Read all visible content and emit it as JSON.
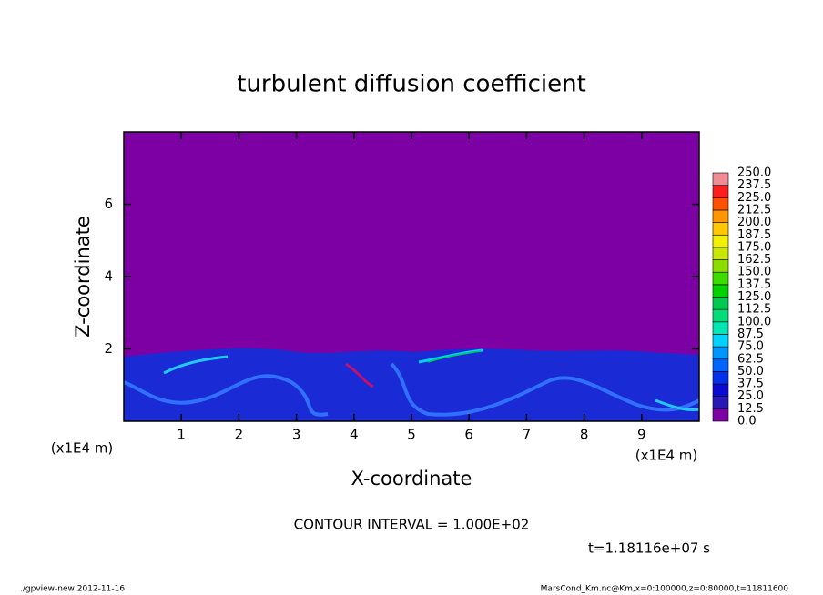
{
  "chart_data": {
    "type": "contour",
    "title": "turbulent diffusion coefficient",
    "x_label": "X-coordinate",
    "y_label": "Z-coordinate",
    "x_unit": "(x1E4 m)",
    "x_unit_right": "(x1E4 m)",
    "xlim": [
      0,
      10
    ],
    "ylim": [
      0,
      8
    ],
    "xticks": [
      1,
      2,
      3,
      4,
      5,
      6,
      7,
      8,
      9
    ],
    "yticks": [
      2,
      4,
      6
    ],
    "contour_interval": "CONTOUR INTERVAL = 1.000E+02",
    "time_label": "t=1.18116e+07 s",
    "footer_left": "./gpview-new  2012-11-16",
    "footer_right": "MarsCond_Km.nc@Km,x=0:100000,z=0:80000,t=11811600",
    "colorbar": {
      "levels": [
        {
          "value": 0,
          "label": "0.0"
        },
        {
          "value": 12.5,
          "label": "12.5"
        },
        {
          "value": 25,
          "label": "25.0"
        },
        {
          "value": 37.5,
          "label": "37.5"
        },
        {
          "value": 50,
          "label": "50.0"
        },
        {
          "value": 62.5,
          "label": "62.5"
        },
        {
          "value": 75,
          "label": "75.0"
        },
        {
          "value": 87.5,
          "label": "87.5"
        },
        {
          "value": 100,
          "label": "100.0"
        },
        {
          "value": 112.5,
          "label": "112.5"
        },
        {
          "value": 125,
          "label": "125.0"
        },
        {
          "value": 137.5,
          "label": "137.5"
        },
        {
          "value": 150,
          "label": "150.0"
        },
        {
          "value": 162.5,
          "label": "162.5"
        },
        {
          "value": 175,
          "label": "175.0"
        },
        {
          "value": 187.5,
          "label": "187.5"
        },
        {
          "value": 200,
          "label": "200.0"
        },
        {
          "value": 212.5,
          "label": "212.5"
        },
        {
          "value": 225,
          "label": "225.0"
        },
        {
          "value": 237.5,
          "label": "237.5"
        },
        {
          "value": 250,
          "label": "250.0"
        }
      ],
      "colors": [
        "#7d00a5",
        "#2818b4",
        "#0a0ad2",
        "#0032ee",
        "#0064ff",
        "#0096ff",
        "#00d2ff",
        "#00e6b4",
        "#00dc78",
        "#00c850",
        "#00d200",
        "#3cdc00",
        "#8cdc00",
        "#c8e600",
        "#f0f000",
        "#ffc800",
        "#ff9600",
        "#ff5000",
        "#ff1e1e",
        "#f08c96"
      ]
    }
  }
}
